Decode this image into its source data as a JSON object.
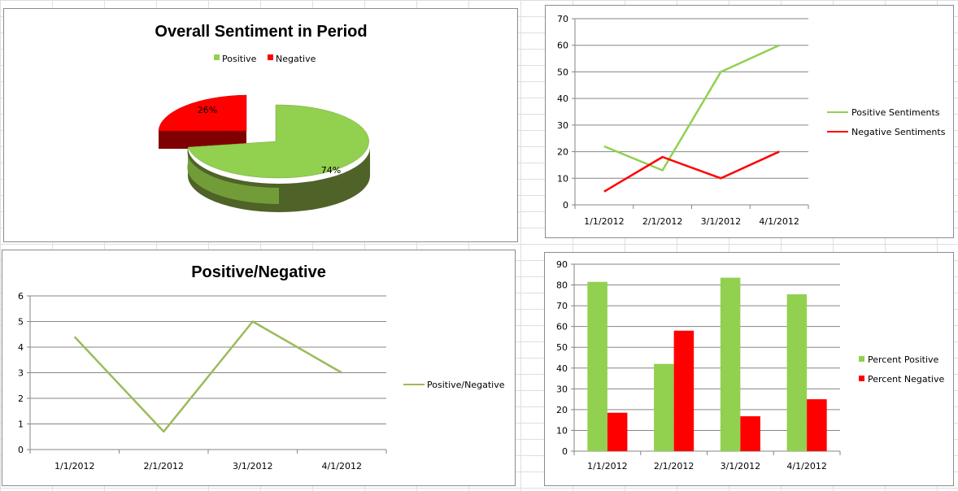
{
  "chart_data": [
    {
      "type": "pie",
      "title": "Overall Sentiment in Period",
      "legend_position": "top",
      "slices": [
        {
          "name": "Positive",
          "value": 74,
          "label": "74%",
          "color": "#92d050",
          "exploded": false
        },
        {
          "name": "Negative",
          "value": 26,
          "label": "26%",
          "color": "#ff0000",
          "exploded": true
        }
      ]
    },
    {
      "type": "line",
      "title": "",
      "categories": [
        "1/1/2012",
        "2/1/2012",
        "3/1/2012",
        "4/1/2012"
      ],
      "yticks": [
        "0",
        "10",
        "20",
        "30",
        "40",
        "50",
        "60",
        "70"
      ],
      "ylim": [
        0,
        70
      ],
      "grid": true,
      "legend_position": "right",
      "series": [
        {
          "name": "Positive Sentiments",
          "color": "#92d050",
          "values": [
            22,
            13,
            50,
            60
          ]
        },
        {
          "name": "Negative Sentiments",
          "color": "#ff0000",
          "values": [
            5,
            18,
            10,
            20
          ]
        }
      ]
    },
    {
      "type": "line",
      "title": "Positive/Negative",
      "categories": [
        "1/1/2012",
        "2/1/2012",
        "3/1/2012",
        "4/1/2012"
      ],
      "yticks": [
        "0",
        "1",
        "2",
        "3",
        "4",
        "5",
        "6"
      ],
      "ylim": [
        0,
        6
      ],
      "grid": true,
      "legend_position": "right",
      "series": [
        {
          "name": "Positive/Negative",
          "color": "#9bbb59",
          "values": [
            4.4,
            0.7,
            5.0,
            3.0
          ]
        }
      ]
    },
    {
      "type": "bar",
      "title": "",
      "categories": [
        "1/1/2012",
        "2/1/2012",
        "3/1/2012",
        "4/1/2012"
      ],
      "yticks": [
        "0",
        "10",
        "20",
        "30",
        "40",
        "50",
        "60",
        "70",
        "80",
        "90"
      ],
      "ylim": [
        0,
        90
      ],
      "grid": true,
      "legend_position": "right",
      "series": [
        {
          "name": "Percent Positive",
          "color": "#92d050",
          "values": [
            81.5,
            42,
            83.5,
            75.5
          ]
        },
        {
          "name": "Percent Negative",
          "color": "#ff0000",
          "values": [
            18.5,
            58,
            16.8,
            25
          ]
        }
      ]
    }
  ]
}
